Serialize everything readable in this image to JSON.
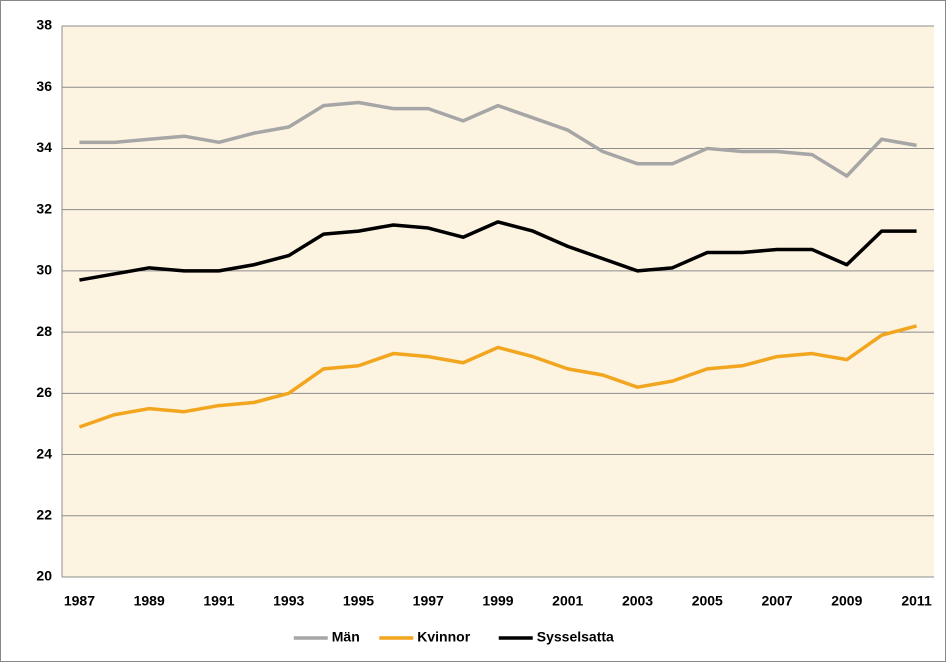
{
  "chart_data": {
    "type": "line",
    "categories": [
      "1987",
      null,
      "1989",
      null,
      "1991",
      null,
      "1993",
      null,
      "1995",
      null,
      "1997",
      null,
      "1999",
      null,
      "2001",
      null,
      "2003",
      null,
      "2005",
      null,
      "2007",
      null,
      "2009",
      null,
      "2011"
    ],
    "series": [
      {
        "name": "Män",
        "color": "#a6a6a6",
        "values": [
          34.2,
          34.2,
          34.3,
          34.4,
          34.2,
          34.5,
          34.7,
          35.4,
          35.5,
          35.3,
          35.3,
          34.9,
          35.4,
          35.0,
          34.6,
          33.9,
          33.5,
          33.5,
          34.0,
          33.9,
          33.9,
          33.8,
          33.1,
          34.3,
          34.1
        ]
      },
      {
        "name": "Kvinnor",
        "color": "#f2a51f",
        "values": [
          24.9,
          25.3,
          25.5,
          25.4,
          25.6,
          25.7,
          26.0,
          26.8,
          26.9,
          27.3,
          27.2,
          27.0,
          27.5,
          27.2,
          26.8,
          26.6,
          26.2,
          26.4,
          26.8,
          26.9,
          27.2,
          27.3,
          27.1,
          27.9,
          28.2
        ]
      },
      {
        "name": "Sysselsatta",
        "color": "#000000",
        "values": [
          29.7,
          29.9,
          30.1,
          30.0,
          30.0,
          30.2,
          30.5,
          31.2,
          31.3,
          31.5,
          31.4,
          31.1,
          31.6,
          31.3,
          30.8,
          30.4,
          30.0,
          30.1,
          30.6,
          30.6,
          30.7,
          30.7,
          30.2,
          31.3,
          31.3
        ]
      }
    ],
    "ylim": [
      20,
      38
    ],
    "yticks": [
      20,
      22,
      24,
      26,
      28,
      30,
      32,
      34,
      36,
      38
    ],
    "grid": true,
    "legend": "bottom"
  }
}
